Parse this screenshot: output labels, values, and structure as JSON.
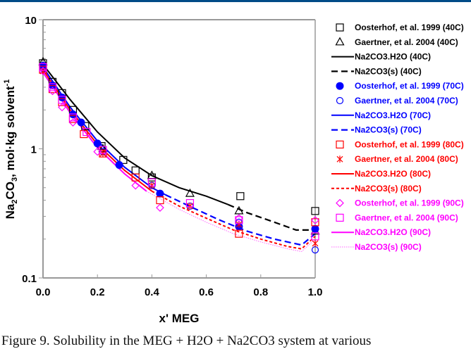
{
  "caption": "Figure 9. Solubility in the MEG + H2O + Na2CO3 system at various",
  "chart_data": {
    "type": "scatter",
    "title": "",
    "xlabel": "x' MEG",
    "ylabel": "Na2CO3, mol·kg solvent-1",
    "ylabel_parts": {
      "pre": "Na",
      "sub1": "2",
      "mid": "CO",
      "sub2": "3",
      "post": ", mol·kg solvent",
      "sup": "-1"
    },
    "xlim": [
      0,
      1
    ],
    "ylim": [
      0.1,
      10
    ],
    "yscale": "log",
    "xticks": [
      "0.0",
      "0.2",
      "0.4",
      "0.6",
      "0.8",
      "1.0"
    ],
    "xtick_values": [
      0,
      0.2,
      0.4,
      0.6,
      0.8,
      1.0
    ],
    "yticks": [
      "0.1",
      "1",
      "10"
    ],
    "ytick_values": [
      0.1,
      1,
      10
    ],
    "grid": false,
    "legend_position": "right",
    "series": [
      {
        "name": "Oosterhof, et al. 1999 (40C)",
        "kind": "marker",
        "marker": "square-open",
        "color": "#000000",
        "points": [
          [
            0.0,
            4.6
          ],
          [
            0.035,
            3.3
          ],
          [
            0.07,
            2.7
          ],
          [
            0.11,
            2.0
          ],
          [
            0.155,
            1.5
          ],
          [
            0.215,
            1.05
          ],
          [
            0.295,
            0.82
          ],
          [
            0.34,
            0.68
          ],
          [
            0.4,
            0.6
          ],
          [
            0.725,
            0.43
          ],
          [
            1.0,
            0.33
          ]
        ]
      },
      {
        "name": "Gaertner, et al. 2004 (40C)",
        "kind": "marker",
        "marker": "triangle-open",
        "color": "#000000",
        "points": [
          [
            0.0,
            4.7
          ],
          [
            0.22,
            1.0
          ],
          [
            0.4,
            0.62
          ],
          [
            0.54,
            0.45
          ],
          [
            0.72,
            0.33
          ],
          [
            1.0,
            0.23
          ]
        ]
      },
      {
        "name": "Na2CO3.H2O (40C)",
        "kind": "line",
        "style": "solid",
        "color": "#000000",
        "points": [
          [
            0.0,
            4.5
          ],
          [
            0.1,
            2.4
          ],
          [
            0.2,
            1.35
          ],
          [
            0.3,
            0.85
          ],
          [
            0.4,
            0.62
          ],
          [
            0.5,
            0.5
          ],
          [
            0.6,
            0.43
          ],
          [
            0.68,
            0.37
          ]
        ]
      },
      {
        "name": "Na2CO3(s) (40C)",
        "kind": "line",
        "style": "dashed",
        "color": "#000000",
        "points": [
          [
            0.68,
            0.37
          ],
          [
            0.75,
            0.32
          ],
          [
            0.85,
            0.27
          ],
          [
            0.93,
            0.235
          ],
          [
            0.98,
            0.235
          ],
          [
            1.0,
            0.245
          ]
        ]
      },
      {
        "name": "Oosterhof, et al. 1999 (70C)",
        "kind": "marker",
        "marker": "circle-filled",
        "color": "#0000ff",
        "points": [
          [
            0.0,
            4.4
          ],
          [
            0.035,
            3.1
          ],
          [
            0.07,
            2.5
          ],
          [
            0.11,
            1.85
          ],
          [
            0.14,
            1.6
          ],
          [
            0.2,
            1.1
          ],
          [
            0.28,
            0.75
          ],
          [
            0.43,
            0.45
          ],
          [
            0.72,
            0.25
          ],
          [
            1.0,
            0.24
          ]
        ]
      },
      {
        "name": "Gaertner, et al. 2004 (70C)",
        "kind": "marker",
        "marker": "circle-open",
        "color": "#0000ff",
        "points": [
          [
            0.0,
            4.2
          ],
          [
            0.22,
            0.95
          ],
          [
            0.4,
            0.52
          ],
          [
            0.54,
            0.36
          ],
          [
            0.72,
            0.27
          ],
          [
            1.0,
            0.165
          ]
        ]
      },
      {
        "name": "Na2CO3.H2O (70C)",
        "kind": "line",
        "style": "solid",
        "color": "#0000ff",
        "points": [
          [
            0.0,
            4.3
          ],
          [
            0.1,
            2.1
          ],
          [
            0.2,
            1.15
          ],
          [
            0.3,
            0.72
          ],
          [
            0.4,
            0.5
          ],
          [
            0.45,
            0.44
          ]
        ]
      },
      {
        "name": "Na2CO3(s) (70C)",
        "kind": "line",
        "style": "dashed",
        "color": "#0000ff",
        "points": [
          [
            0.45,
            0.44
          ],
          [
            0.55,
            0.35
          ],
          [
            0.65,
            0.28
          ],
          [
            0.75,
            0.23
          ],
          [
            0.85,
            0.2
          ],
          [
            0.95,
            0.18
          ],
          [
            1.0,
            0.22
          ]
        ]
      },
      {
        "name": "Oosterhof, et al. 1999 (80C)",
        "kind": "marker",
        "marker": "square-open",
        "color": "#ff0000",
        "points": [
          [
            0.0,
            4.1
          ],
          [
            0.035,
            2.9
          ],
          [
            0.07,
            2.3
          ],
          [
            0.11,
            1.7
          ],
          [
            0.15,
            1.3
          ],
          [
            0.22,
            0.92
          ],
          [
            0.34,
            0.6
          ],
          [
            0.43,
            0.4
          ],
          [
            0.72,
            0.22
          ],
          [
            1.0,
            0.27
          ]
        ]
      },
      {
        "name": "Gaertner, et al. 2004 (80C)",
        "kind": "marker",
        "marker": "asterisk",
        "color": "#ff0000",
        "points": [
          [
            0.0,
            4.0
          ],
          [
            0.22,
            0.92
          ],
          [
            0.4,
            0.52
          ],
          [
            0.54,
            0.36
          ],
          [
            0.72,
            0.26
          ],
          [
            1.0,
            0.185
          ]
        ]
      },
      {
        "name": "Na2CO3.H2O (80C)",
        "kind": "line",
        "style": "solid",
        "color": "#ff0000",
        "points": [
          [
            0.0,
            4.1
          ],
          [
            0.1,
            2.0
          ],
          [
            0.2,
            1.08
          ],
          [
            0.3,
            0.68
          ],
          [
            0.4,
            0.47
          ]
        ]
      },
      {
        "name": "Na2CO3(s) (80C)",
        "kind": "line",
        "style": "dashed-short",
        "color": "#ff0000",
        "points": [
          [
            0.4,
            0.47
          ],
          [
            0.5,
            0.36
          ],
          [
            0.6,
            0.29
          ],
          [
            0.7,
            0.235
          ],
          [
            0.8,
            0.2
          ],
          [
            0.9,
            0.175
          ],
          [
            0.95,
            0.168
          ],
          [
            1.0,
            0.21
          ]
        ]
      },
      {
        "name": "Oosterhof, et al. 1999 (90C)",
        "kind": "marker",
        "marker": "diamond-open",
        "color": "#ff00ff",
        "points": [
          [
            0.0,
            4.0
          ],
          [
            0.035,
            2.8
          ],
          [
            0.07,
            2.1
          ],
          [
            0.11,
            1.6
          ],
          [
            0.2,
            0.95
          ],
          [
            0.34,
            0.52
          ],
          [
            0.43,
            0.35
          ],
          [
            0.72,
            0.29
          ],
          [
            1.0,
            0.28
          ]
        ]
      },
      {
        "name": "Gaertner, et al. 2004 (90C)",
        "kind": "marker",
        "marker": "square-open",
        "color": "#ff00ff",
        "points": [
          [
            0.0,
            4.3
          ],
          [
            0.035,
            3.0
          ],
          [
            0.07,
            2.4
          ],
          [
            0.11,
            1.75
          ],
          [
            0.16,
            1.35
          ],
          [
            0.22,
            0.98
          ],
          [
            0.4,
            0.55
          ],
          [
            0.54,
            0.38
          ],
          [
            0.72,
            0.28
          ],
          [
            1.0,
            0.21
          ]
        ]
      },
      {
        "name": "Na2CO3.H2O (90C)",
        "kind": "line",
        "style": "solid",
        "color": "#ff00ff",
        "points": [
          [
            0.0,
            3.9
          ],
          [
            0.1,
            1.9
          ],
          [
            0.2,
            1.02
          ],
          [
            0.3,
            0.64
          ],
          [
            0.38,
            0.47
          ]
        ]
      },
      {
        "name": "Na2CO3(s) (90C)",
        "kind": "line",
        "style": "dotted",
        "color": "#ff66ff",
        "points": [
          [
            0.38,
            0.47
          ],
          [
            0.5,
            0.34
          ],
          [
            0.6,
            0.27
          ],
          [
            0.7,
            0.22
          ],
          [
            0.8,
            0.19
          ],
          [
            0.9,
            0.168
          ],
          [
            0.95,
            0.16
          ],
          [
            1.0,
            0.2
          ]
        ]
      }
    ]
  }
}
